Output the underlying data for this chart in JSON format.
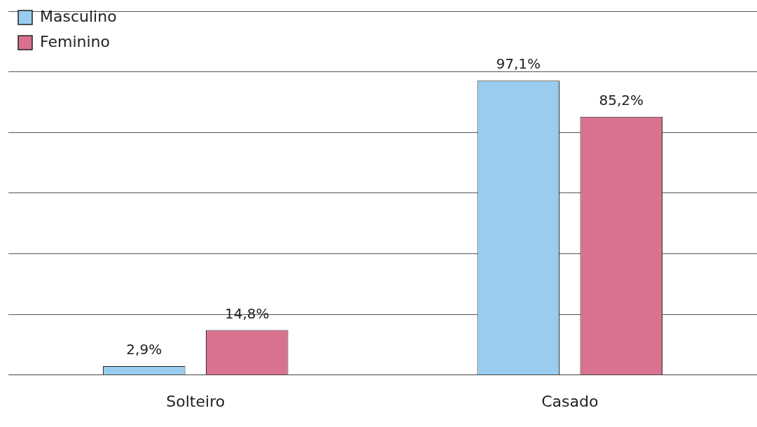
{
  "chart_data": {
    "type": "bar",
    "categories": [
      "Solteiro",
      "Casado"
    ],
    "series": [
      {
        "name": "Masculino",
        "color": "#99ccee",
        "values": [
          2.9,
          97.1
        ],
        "value_labels": [
          "2,9%",
          "97,1%"
        ]
      },
      {
        "name": "Feminino",
        "color": "#d9728f",
        "values": [
          14.8,
          85.2
        ],
        "value_labels": [
          "14,8%",
          "85,2%"
        ]
      }
    ],
    "grid": "y",
    "legend": "top left",
    "tick_labels": "x"
  }
}
